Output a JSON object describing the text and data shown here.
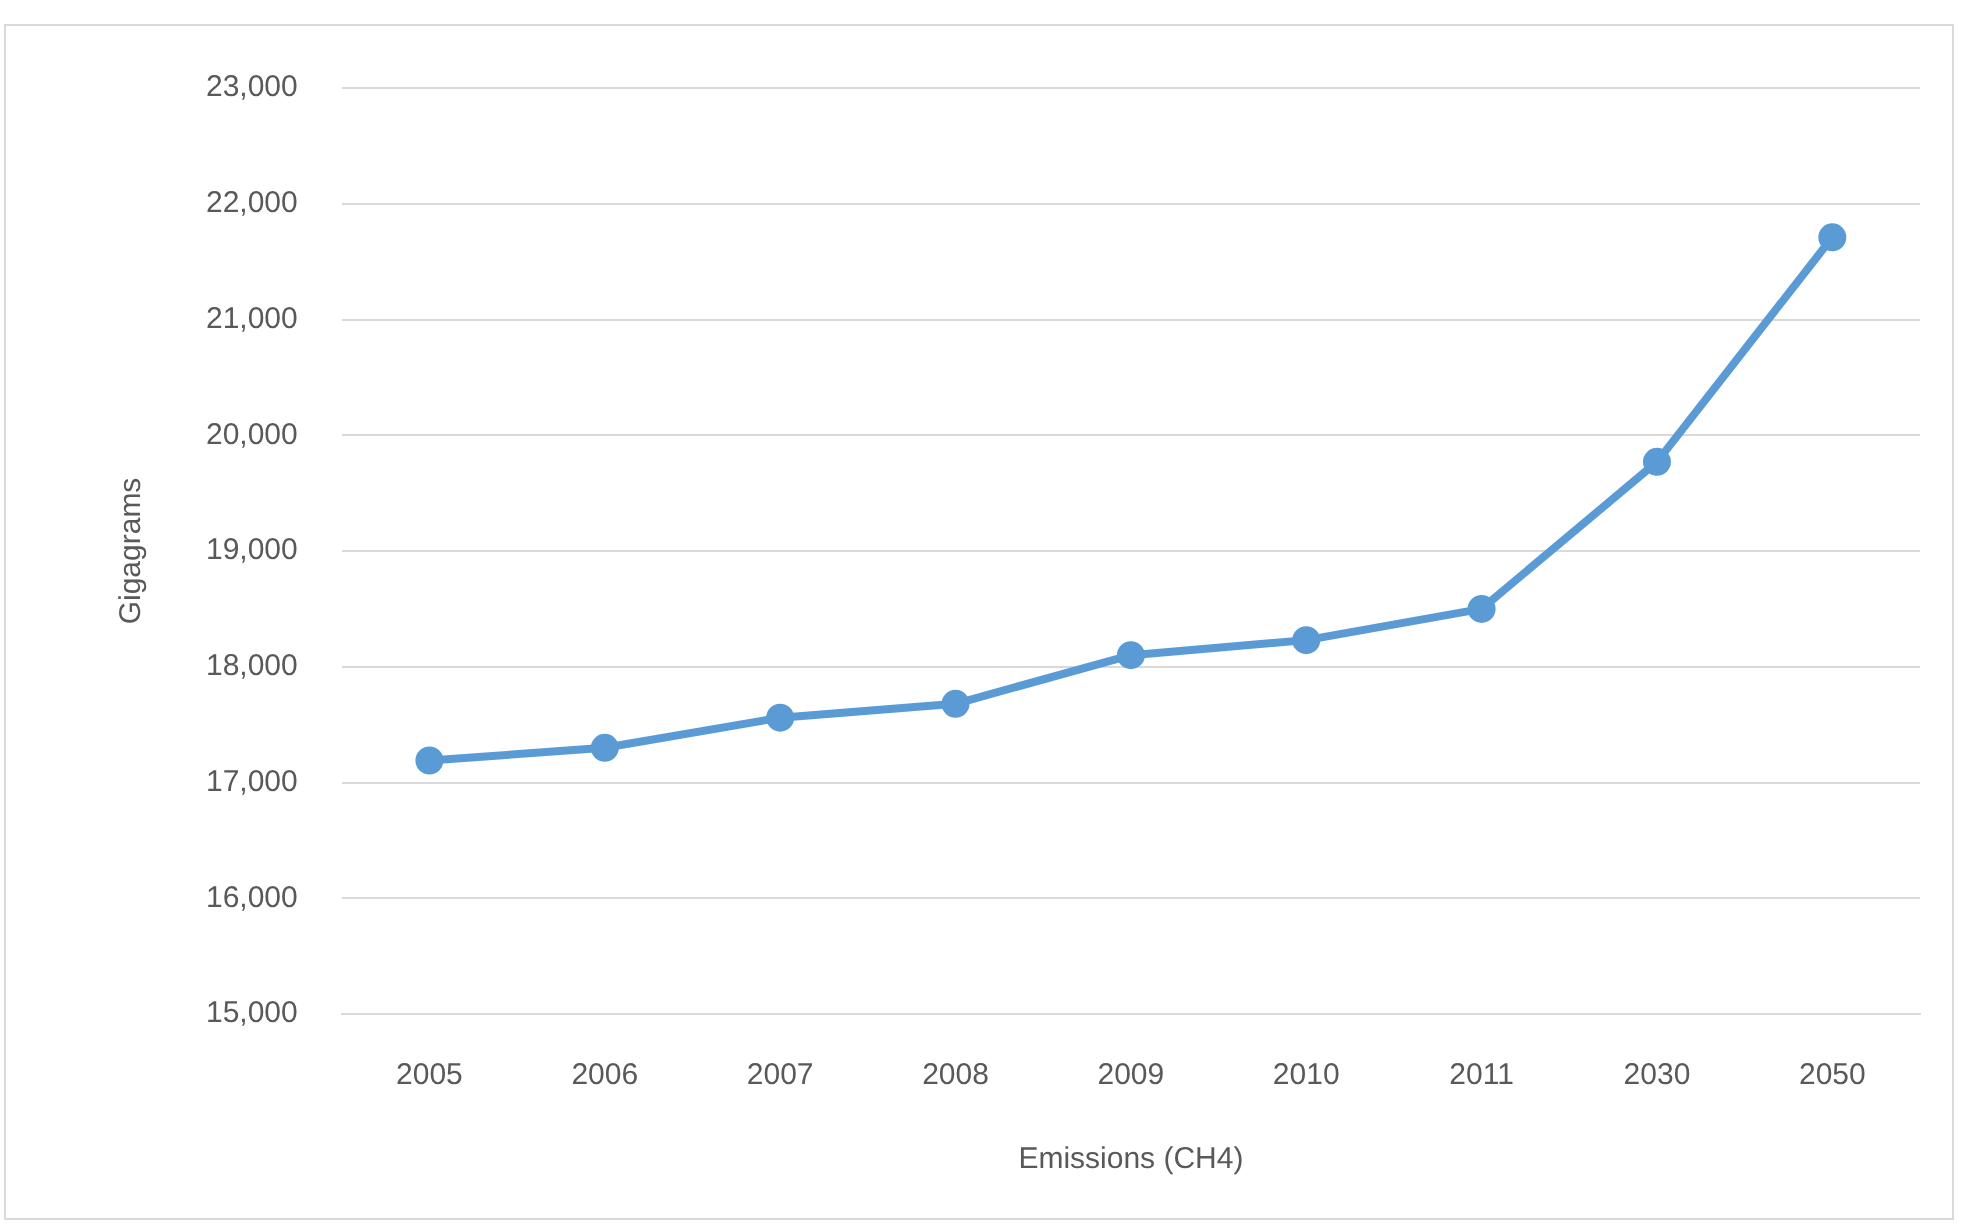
{
  "chart_data": {
    "type": "line",
    "xlabel": "Emissions (CH4)",
    "ylabel": "Gigagrams",
    "categories": [
      "2005",
      "2006",
      "2007",
      "2008",
      "2009",
      "2010",
      "2011",
      "2030",
      "2050"
    ],
    "series": [
      {
        "color": "#5b9bd5",
        "values": [
          17190,
          17300,
          17560,
          17680,
          18100,
          18230,
          18500,
          19770,
          21710
        ]
      }
    ],
    "ylim": [
      15000,
      23000
    ],
    "yticks": [
      {
        "value": 15000,
        "label": "15,000"
      },
      {
        "value": 16000,
        "label": "16,000"
      },
      {
        "value": 17000,
        "label": "17,000"
      },
      {
        "value": 18000,
        "label": "18,000"
      },
      {
        "value": 19000,
        "label": "19,000"
      },
      {
        "value": 20000,
        "label": "20,000"
      },
      {
        "value": 21000,
        "label": "21,000"
      },
      {
        "value": 22000,
        "label": "22,000"
      },
      {
        "value": 23000,
        "label": "23,000"
      }
    ],
    "grid": "y",
    "legend": false,
    "marker": "circle",
    "line_style": "solid"
  }
}
